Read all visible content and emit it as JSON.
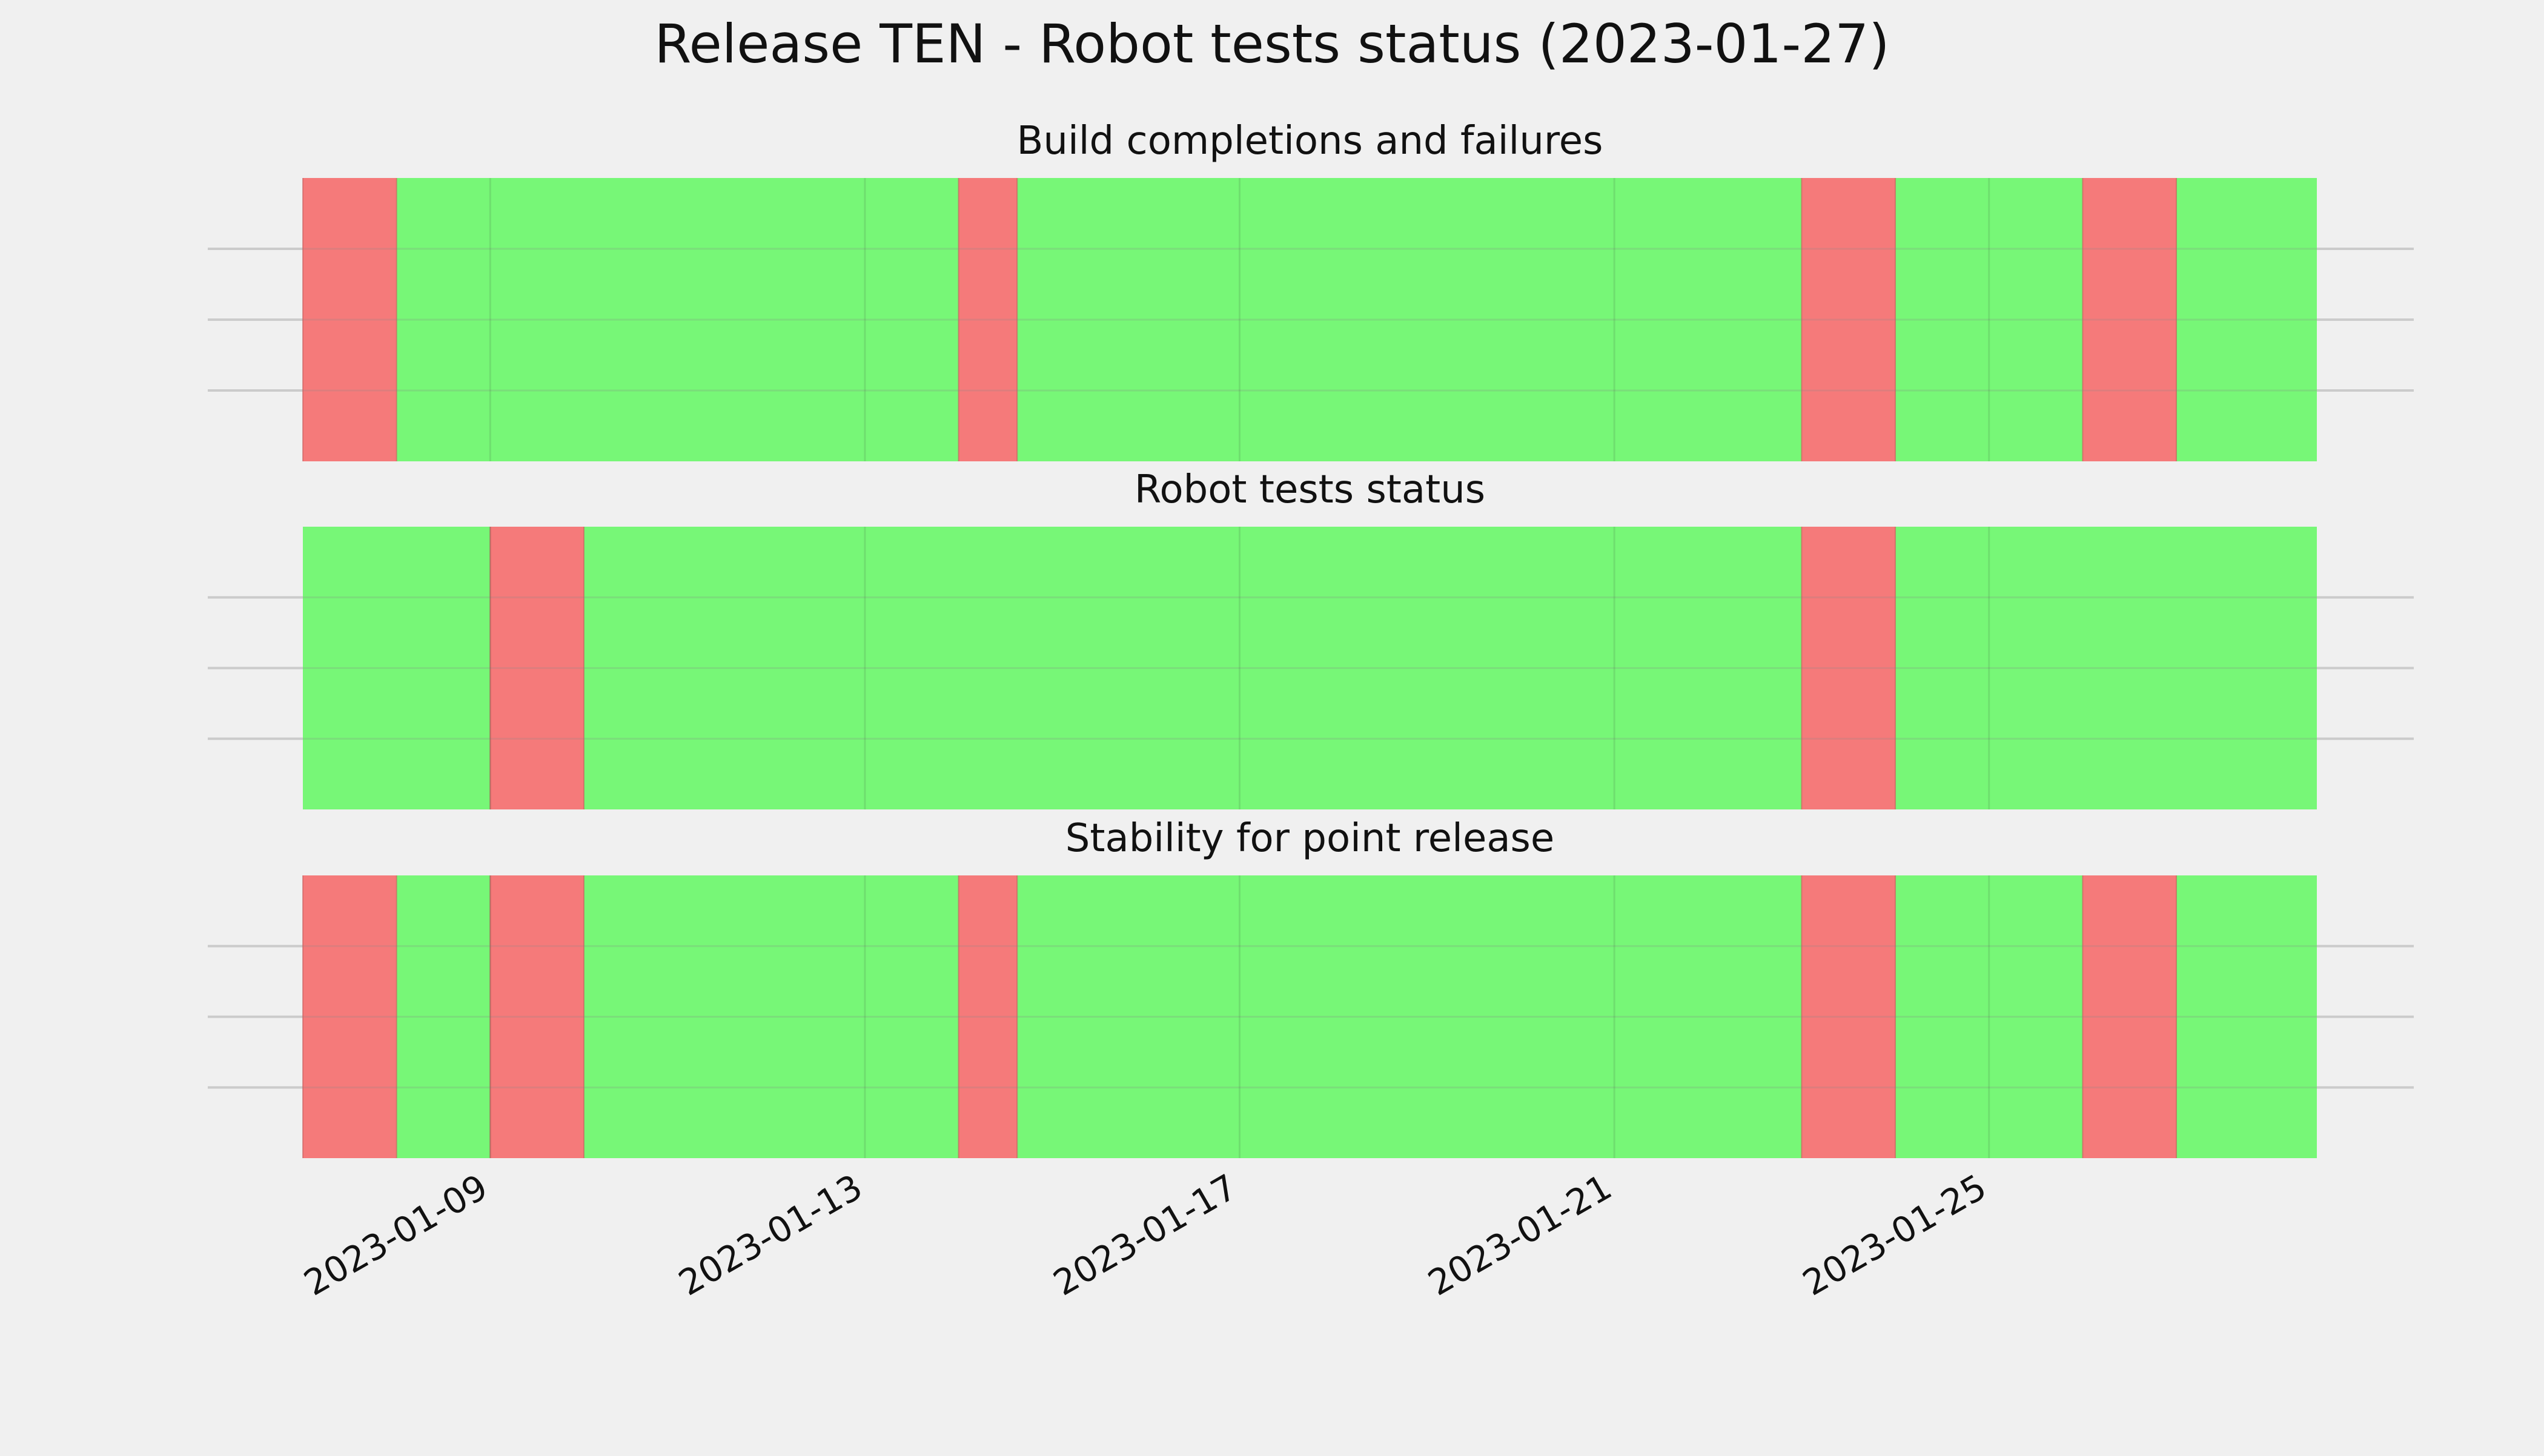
{
  "page": {
    "title": "Release TEN - Robot tests status (2023-01-27)"
  },
  "colors": {
    "background": "#f0f0f0",
    "pass": "#77f777",
    "fail": "#f57a7a",
    "grid": "#cbcbcb",
    "band_grid": "#5fd45f"
  },
  "chart_data": [
    {
      "type": "timeline",
      "title": "Build completions and failures",
      "x_range": [
        "2023-01-07",
        "2023-01-28 12:00"
      ],
      "grid": true,
      "segments": [
        {
          "start": "2023-01-07",
          "end": "2023-01-08",
          "status": "fail"
        },
        {
          "start": "2023-01-08",
          "end": "2023-01-14",
          "status": "pass"
        },
        {
          "start": "2023-01-14",
          "end": "2023-01-14 15:00",
          "status": "fail"
        },
        {
          "start": "2023-01-14 15:00",
          "end": "2023-01-23",
          "status": "pass"
        },
        {
          "start": "2023-01-23",
          "end": "2023-01-24",
          "status": "fail"
        },
        {
          "start": "2023-01-24",
          "end": "2023-01-26",
          "status": "pass"
        },
        {
          "start": "2023-01-26",
          "end": "2023-01-27",
          "status": "fail"
        },
        {
          "start": "2023-01-27",
          "end": "2023-01-28 12:00",
          "status": "pass"
        }
      ]
    },
    {
      "type": "timeline",
      "title": "Robot tests status",
      "x_range": [
        "2023-01-07",
        "2023-01-28 12:00"
      ],
      "grid": true,
      "segments": [
        {
          "start": "2023-01-07",
          "end": "2023-01-09",
          "status": "pass"
        },
        {
          "start": "2023-01-09",
          "end": "2023-01-10",
          "status": "fail"
        },
        {
          "start": "2023-01-10",
          "end": "2023-01-23",
          "status": "pass"
        },
        {
          "start": "2023-01-23",
          "end": "2023-01-24",
          "status": "fail"
        },
        {
          "start": "2023-01-24",
          "end": "2023-01-28 12:00",
          "status": "pass"
        }
      ]
    },
    {
      "type": "timeline",
      "title": "Stability for point release",
      "x_range": [
        "2023-01-07",
        "2023-01-28 12:00"
      ],
      "grid": true,
      "x_ticks": [
        "2023-01-09",
        "2023-01-13",
        "2023-01-17",
        "2023-01-21",
        "2023-01-25"
      ],
      "segments": [
        {
          "start": "2023-01-07",
          "end": "2023-01-08",
          "status": "fail"
        },
        {
          "start": "2023-01-08",
          "end": "2023-01-09",
          "status": "pass"
        },
        {
          "start": "2023-01-09",
          "end": "2023-01-10",
          "status": "fail"
        },
        {
          "start": "2023-01-10",
          "end": "2023-01-14",
          "status": "pass"
        },
        {
          "start": "2023-01-14",
          "end": "2023-01-14 15:00",
          "status": "fail"
        },
        {
          "start": "2023-01-14 15:00",
          "end": "2023-01-23",
          "status": "pass"
        },
        {
          "start": "2023-01-23",
          "end": "2023-01-24",
          "status": "fail"
        },
        {
          "start": "2023-01-24",
          "end": "2023-01-26",
          "status": "pass"
        },
        {
          "start": "2023-01-26",
          "end": "2023-01-27",
          "status": "fail"
        },
        {
          "start": "2023-01-27",
          "end": "2023-01-28 12:00",
          "status": "pass"
        }
      ]
    }
  ]
}
